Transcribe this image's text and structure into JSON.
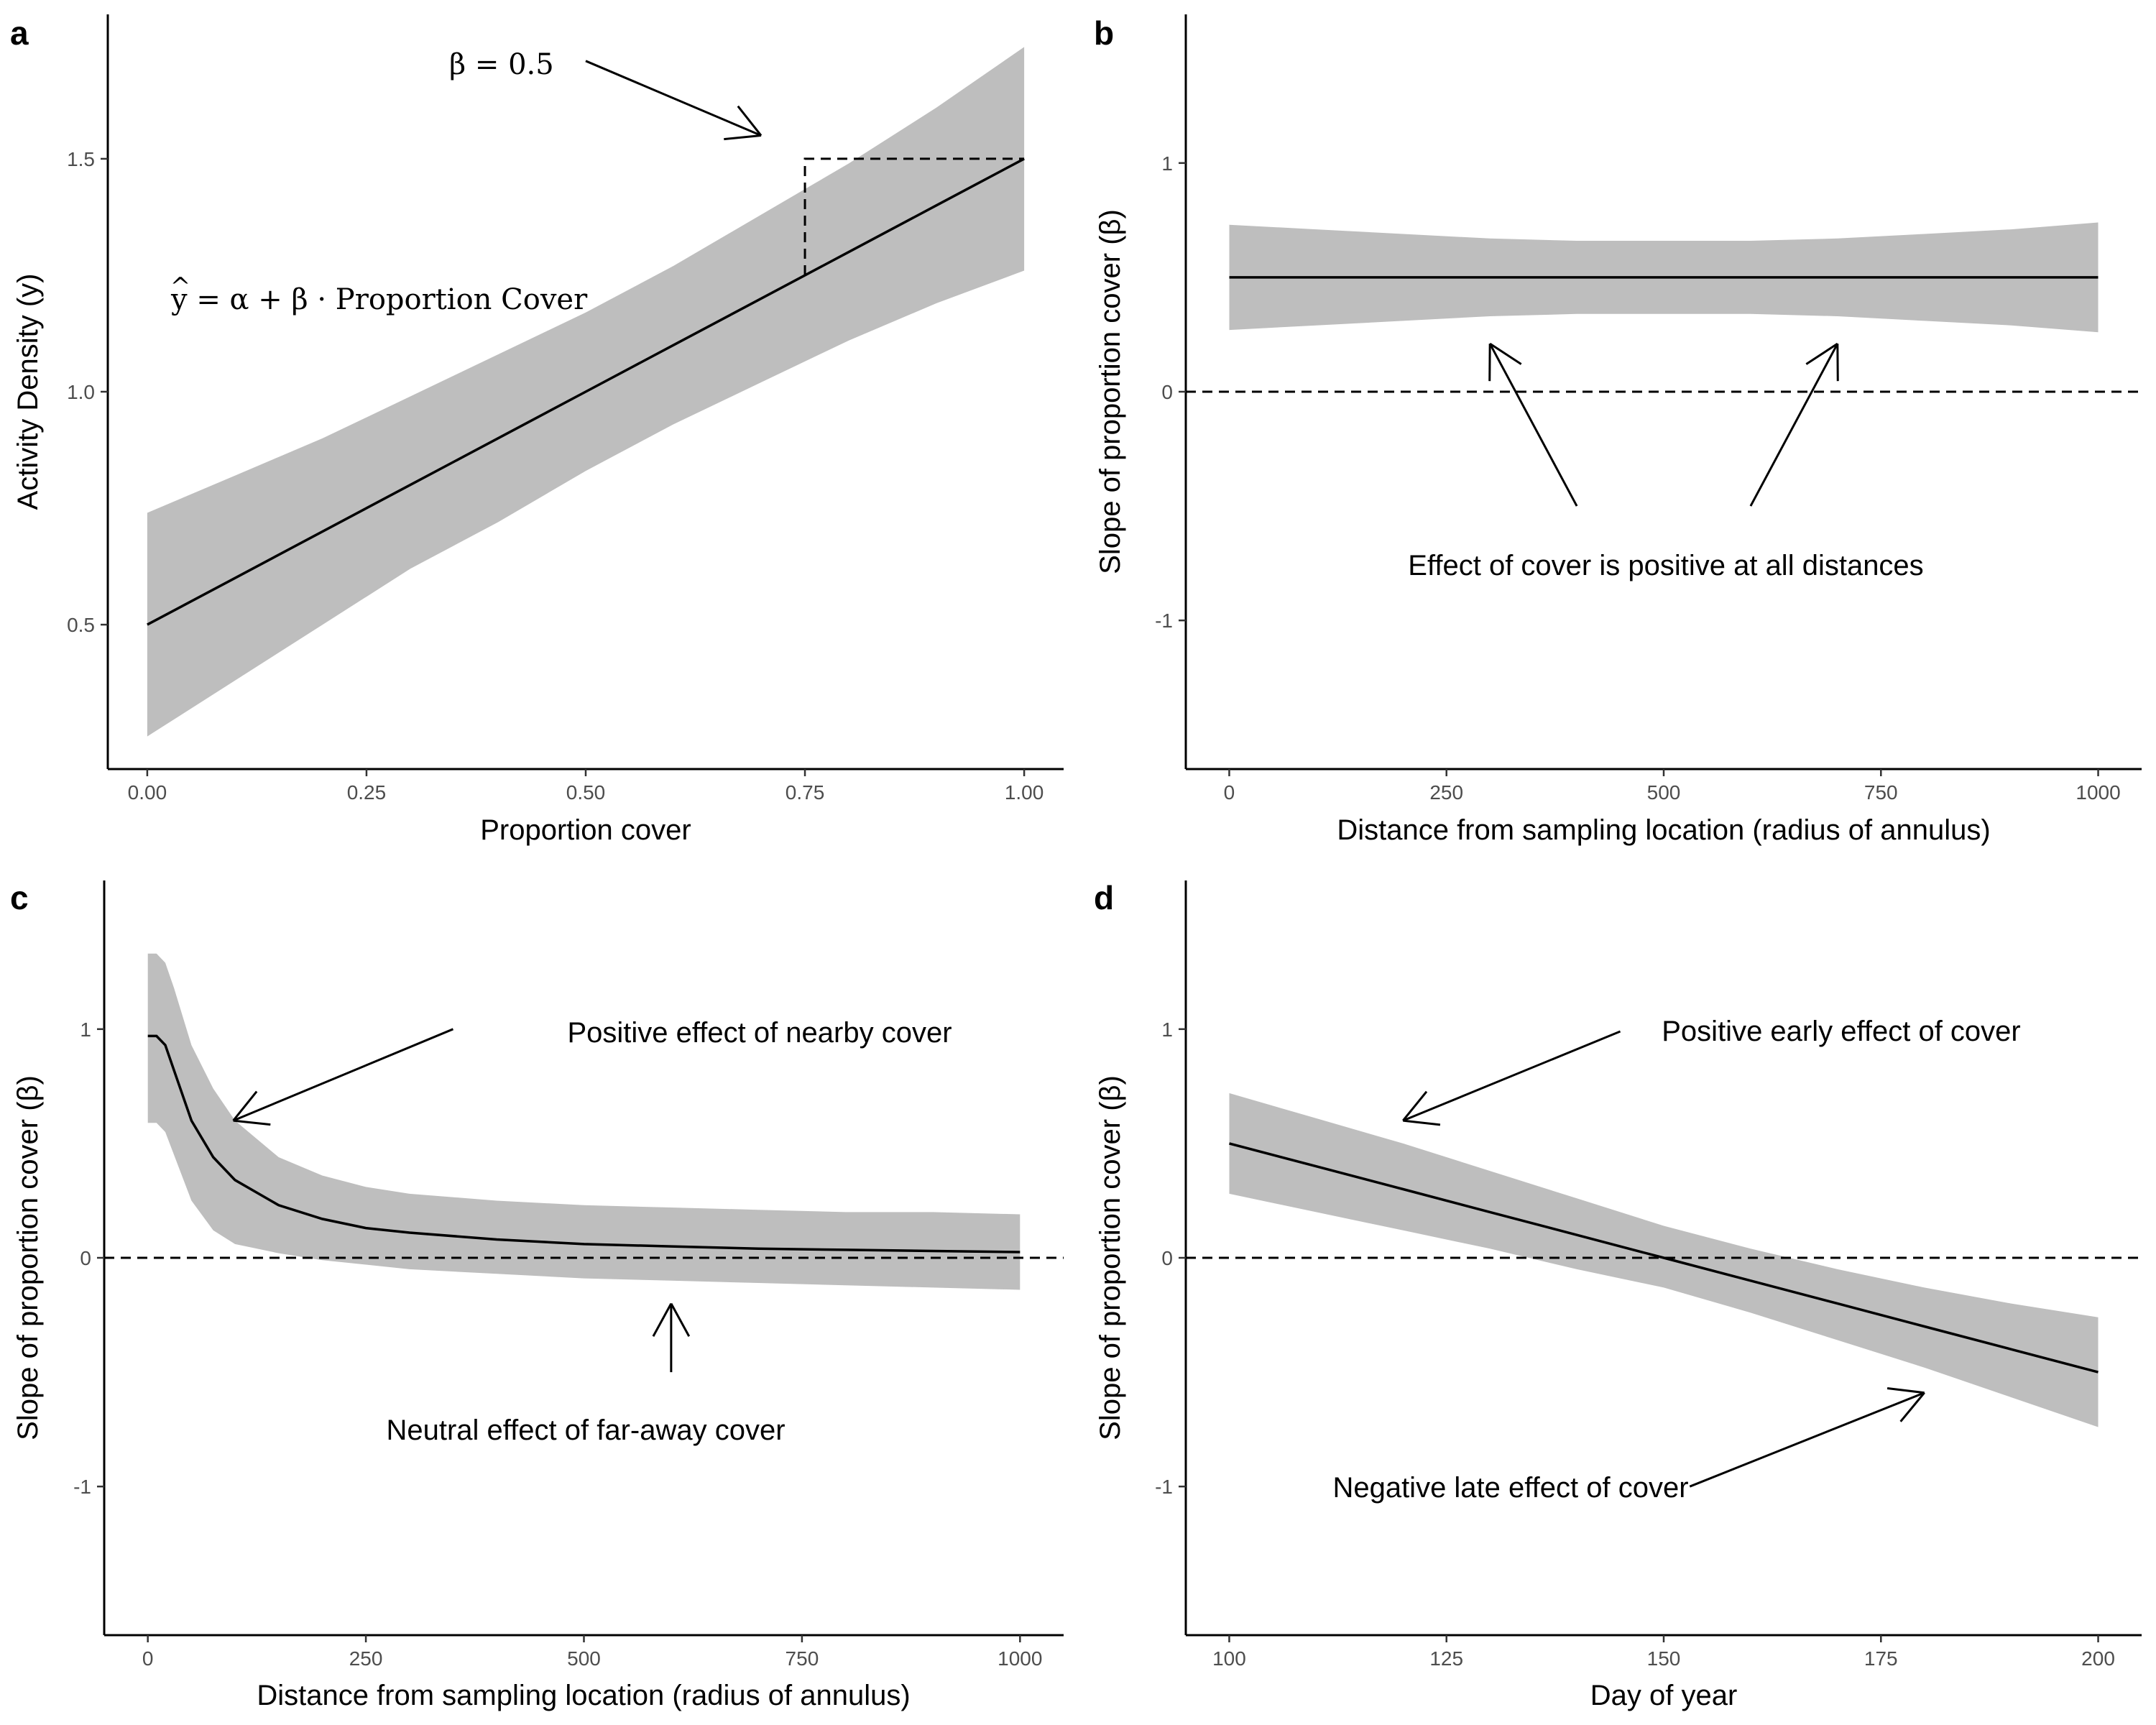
{
  "chart_data": [
    {
      "panel": "a",
      "type": "line",
      "xlabel": "Proportion cover",
      "ylabel": "Activity Density (y)",
      "xlim": [
        -0.045,
        1.045
      ],
      "ylim": [
        0.19,
        1.81
      ],
      "xticks": [
        0.0,
        0.25,
        0.5,
        0.75,
        1.0
      ],
      "xtick_labels": [
        "0.00",
        "0.25",
        "0.50",
        "0.75",
        "1.00"
      ],
      "yticks": [
        0.5,
        1.0,
        1.5
      ],
      "ytick_labels": [
        "0.5",
        "1.0",
        "1.5"
      ],
      "series": [
        {
          "x": [
            0,
            0.1,
            0.2,
            0.3,
            0.4,
            0.5,
            0.6,
            0.7,
            0.8,
            0.9,
            1.0
          ],
          "values": [
            0.5,
            0.6,
            0.7,
            0.8,
            0.9,
            1.0,
            1.1,
            1.2,
            1.3,
            1.4,
            1.5
          ],
          "lower": [
            0.26,
            0.38,
            0.5,
            0.62,
            0.72,
            0.83,
            0.93,
            1.02,
            1.11,
            1.19,
            1.26
          ],
          "upper": [
            0.74,
            0.82,
            0.9,
            0.99,
            1.08,
            1.17,
            1.27,
            1.38,
            1.49,
            1.61,
            1.74
          ]
        }
      ],
      "guide": {
        "from_x": 0.75,
        "to_x": 1.0,
        "y_low": 1.25,
        "y_high": 1.5
      },
      "annotations": {
        "beta_text": "β = 0.5",
        "formula": {
          "y": "y",
          "hat": "^",
          "rest": " = α + β · Proportion Cover"
        }
      },
      "arrows": [
        {
          "from": [
            0.5,
            1.71
          ],
          "to": [
            0.7,
            1.55
          ]
        }
      ]
    },
    {
      "panel": "b",
      "type": "line",
      "xlabel": "Distance from sampling location (radius of annulus)",
      "ylabel": "Slope of proportion cover (β)",
      "xlim": [
        -50,
        1050
      ],
      "ylim": [
        -1.65,
        1.65
      ],
      "xticks": [
        0,
        250,
        500,
        750,
        1000
      ],
      "xtick_labels": [
        "0",
        "250",
        "500",
        "750",
        "1000"
      ],
      "yticks": [
        -1,
        0,
        1
      ],
      "ytick_labels": [
        "-1",
        "0",
        "1"
      ],
      "hline": 0,
      "series": [
        {
          "x": [
            0,
            100,
            200,
            300,
            400,
            500,
            600,
            700,
            800,
            900,
            1000
          ],
          "values": [
            0.5,
            0.5,
            0.5,
            0.5,
            0.5,
            0.5,
            0.5,
            0.5,
            0.5,
            0.5,
            0.5
          ],
          "lower": [
            0.27,
            0.29,
            0.31,
            0.33,
            0.34,
            0.34,
            0.34,
            0.33,
            0.31,
            0.29,
            0.26
          ],
          "upper": [
            0.73,
            0.71,
            0.69,
            0.67,
            0.66,
            0.66,
            0.66,
            0.67,
            0.69,
            0.71,
            0.74
          ]
        }
      ],
      "annotations": {
        "text": "Effect of cover is positive at all distances"
      },
      "arrows": [
        {
          "from": [
            400,
            -0.5
          ],
          "to": [
            300,
            0.21
          ]
        },
        {
          "from": [
            600,
            -0.5
          ],
          "to": [
            700,
            0.21
          ]
        }
      ]
    },
    {
      "panel": "c",
      "type": "line",
      "xlabel": "Distance from sampling location (radius of annulus)",
      "ylabel": "Slope of proportion cover (β)",
      "xlim": [
        -50,
        1050
      ],
      "ylim": [
        -1.65,
        1.65
      ],
      "xticks": [
        0,
        250,
        500,
        750,
        1000
      ],
      "xtick_labels": [
        "0",
        "250",
        "500",
        "750",
        "1000"
      ],
      "yticks": [
        -1,
        0,
        1
      ],
      "ytick_labels": [
        "-1",
        "0",
        "1"
      ],
      "hline": 0,
      "series": [
        {
          "x": [
            0,
            10,
            20,
            30,
            50,
            75,
            100,
            150,
            200,
            250,
            300,
            400,
            500,
            600,
            700,
            800,
            900,
            1000
          ],
          "values": [
            0.97,
            0.97,
            0.93,
            0.82,
            0.6,
            0.44,
            0.34,
            0.23,
            0.17,
            0.13,
            0.11,
            0.08,
            0.06,
            0.05,
            0.04,
            0.035,
            0.03,
            0.025
          ],
          "lower": [
            0.59,
            0.59,
            0.55,
            0.45,
            0.25,
            0.12,
            0.06,
            0.02,
            -0.01,
            -0.03,
            -0.05,
            -0.07,
            -0.09,
            -0.1,
            -0.11,
            -0.12,
            -0.13,
            -0.14
          ],
          "upper": [
            1.33,
            1.33,
            1.29,
            1.18,
            0.93,
            0.74,
            0.6,
            0.44,
            0.36,
            0.31,
            0.28,
            0.25,
            0.23,
            0.22,
            0.21,
            0.2,
            0.2,
            0.19
          ]
        }
      ],
      "annotations": {
        "near_text": "Positive effect of nearby cover",
        "far_text": "Neutral effect of far-away cover"
      },
      "arrows": [
        {
          "from": [
            350,
            1.0
          ],
          "to": [
            98,
            0.6
          ]
        },
        {
          "from": [
            600,
            -0.5
          ],
          "to": [
            600,
            -0.2
          ]
        }
      ]
    },
    {
      "panel": "d",
      "type": "line",
      "xlabel": "Day of year",
      "ylabel": "Slope of proportion cover (β)",
      "xlim": [
        95,
        205
      ],
      "ylim": [
        -1.65,
        1.65
      ],
      "xticks": [
        100,
        125,
        150,
        175,
        200
      ],
      "xtick_labels": [
        "100",
        "125",
        "150",
        "175",
        "200"
      ],
      "yticks": [
        -1,
        0,
        1
      ],
      "ytick_labels": [
        "-1",
        "0",
        "1"
      ],
      "hline": 0,
      "series": [
        {
          "x": [
            100,
            110,
            120,
            130,
            140,
            150,
            160,
            170,
            180,
            190,
            200
          ],
          "values": [
            0.5,
            0.4,
            0.3,
            0.2,
            0.1,
            0.0,
            -0.1,
            -0.2,
            -0.3,
            -0.4,
            -0.5
          ],
          "lower": [
            0.28,
            0.2,
            0.12,
            0.04,
            -0.05,
            -0.13,
            -0.24,
            -0.36,
            -0.48,
            -0.61,
            -0.74
          ],
          "upper": [
            0.72,
            0.61,
            0.5,
            0.38,
            0.26,
            0.14,
            0.04,
            -0.05,
            -0.13,
            -0.2,
            -0.26
          ]
        }
      ],
      "annotations": {
        "early_text": "Positive early effect of cover",
        "late_text": "Negative late effect of cover"
      },
      "arrows": [
        {
          "from": [
            145,
            0.99
          ],
          "to": [
            120,
            0.6
          ]
        },
        {
          "from": [
            153,
            -1.0
          ],
          "to": [
            180,
            -0.59
          ]
        }
      ]
    }
  ]
}
